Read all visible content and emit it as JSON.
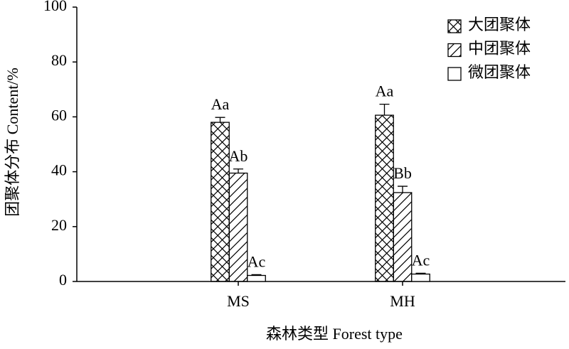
{
  "chart_data": {
    "type": "bar",
    "x_label": "森林类型 Forest type",
    "y_label": "团聚体分布 Content/%",
    "categories": [
      "MS",
      "MH"
    ],
    "series": [
      {
        "name": "大团聚体",
        "color": "#000000",
        "pattern": "cross",
        "values": [
          58,
          60.6
        ],
        "errors": [
          1.8,
          4
        ],
        "labels": [
          "Aa",
          "Aa"
        ]
      },
      {
        "name": "中团聚体",
        "color": "#000000",
        "pattern": "hatch",
        "values": [
          39.5,
          32.4
        ],
        "errors": [
          1.5,
          2.3
        ],
        "labels": [
          "Ab",
          "Bb"
        ]
      },
      {
        "name": "微团聚体",
        "color": "#000000",
        "pattern": "none",
        "values": [
          2.2,
          2.7
        ],
        "errors": [
          0.3,
          0.3
        ],
        "labels": [
          "Ac",
          "Ac"
        ]
      }
    ],
    "ylim": [
      0,
      100
    ],
    "yticks": [
      0,
      20,
      40,
      60,
      80,
      100
    ],
    "grid": false,
    "legend": "top-right"
  }
}
